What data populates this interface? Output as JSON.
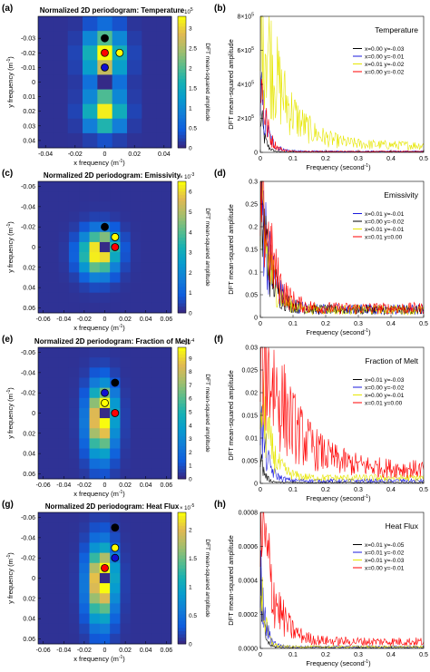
{
  "chart_data": [
    {
      "type": "heatmap",
      "panel_letter": "(a)",
      "title": "Normalized 2D periodogram: Temperature",
      "xlabel": "x frequency (m",
      "ylabel": "y frequency (m",
      "xlim": [
        -0.045,
        0.045
      ],
      "ylim": [
        -0.045,
        0.045
      ],
      "xticks": [
        "-0.04",
        "-0.02",
        "0",
        "0.02",
        "0.04"
      ],
      "yticks": [
        "-0.03",
        "-0.02",
        "-0.01",
        "0",
        "0.01",
        "0.02",
        "0.03",
        "0.04"
      ],
      "colorbar_ticks": [
        "0",
        "0.5",
        "1",
        "1.5",
        "2",
        "2.5",
        "3"
      ],
      "colorbar_exponent": "× 10",
      "colorbar_exponent_power": "5",
      "colorbar_max": 3.3,
      "colorbar_label": "DFT mean-squared amplitude",
      "markers": [
        {
          "x": 0.0,
          "y": -0.03,
          "color": "#000000"
        },
        {
          "x": 0.0,
          "y": -0.01,
          "color": "#1010d0"
        },
        {
          "x": 0.01,
          "y": -0.02,
          "color": "#ffff00"
        },
        {
          "x": 0.0,
          "y": -0.02,
          "color": "#ff0000"
        }
      ]
    },
    {
      "type": "line",
      "panel_letter": "(b)",
      "title": "Temperature",
      "xlabel": "Frequency (second",
      "ylabel": "DFT mean-squared amplitude",
      "xlim": [
        0,
        0.5
      ],
      "ylim": [
        0,
        800000
      ],
      "xticks": [
        "0",
        "0.1",
        "0.2",
        "0.3",
        "0.4",
        "0.5"
      ],
      "yticks": [
        "0",
        "2×10",
        "4×10",
        "6×10",
        "8×10"
      ],
      "ytick_exponent": "5",
      "series": [
        {
          "name": "x=0.00 y=-0.03",
          "color": "#000000",
          "peak": 250000,
          "decay": 0.012,
          "floor": 2000
        },
        {
          "name": "x=0.00 y=-0.01",
          "color": "#1a1adc",
          "peak": 360000,
          "decay": 0.02,
          "floor": 6000
        },
        {
          "name": "x=0.01 y=-0.02",
          "color": "#e6e600",
          "peak": 800000,
          "decay": 0.07,
          "floor": 40000
        },
        {
          "name": "x=0.00 y=-0.02",
          "color": "#ff0000",
          "peak": 480000,
          "decay": 0.018,
          "floor": 5000
        }
      ]
    },
    {
      "type": "heatmap",
      "panel_letter": "(c)",
      "title": "Normalized 2D periodogram: Emissivity",
      "xlabel": "x frequency (m",
      "ylabel": "y frequency (m",
      "xlim": [
        -0.065,
        0.065
      ],
      "ylim": [
        -0.065,
        0.065
      ],
      "xticks": [
        "-0.06",
        "-0.04",
        "-0.02",
        "0",
        "0.02",
        "0.04",
        "0.06"
      ],
      "yticks": [
        "-0.06",
        "-0.04",
        "-0.02",
        "0",
        "0.02",
        "0.04",
        "0.06"
      ],
      "colorbar_ticks": [
        "0",
        "1",
        "2",
        "3",
        "4",
        "5",
        "6"
      ],
      "colorbar_exponent": "× 10",
      "colorbar_exponent_power": "-3",
      "colorbar_max": 6.5,
      "colorbar_label": "DFT mean-squared amplitude",
      "markers": [
        {
          "x": 0.01,
          "y": -0.01,
          "color": "#1010d0"
        },
        {
          "x": 0.0,
          "y": -0.02,
          "color": "#000000"
        },
        {
          "x": 0.01,
          "y": -0.01,
          "color": "#ffff00"
        },
        {
          "x": 0.01,
          "y": 0.0,
          "color": "#ff0000"
        }
      ]
    },
    {
      "type": "line",
      "panel_letter": "(d)",
      "title": "Emissivity",
      "xlabel": "Frequency (second",
      "ylabel": "DFT mean-squared amplitude",
      "xlim": [
        0,
        0.5
      ],
      "ylim": [
        0,
        0.3
      ],
      "xticks": [
        "0",
        "0.1",
        "0.2",
        "0.3",
        "0.4",
        "0.5"
      ],
      "yticks": [
        "0",
        "0.05",
        "0.1",
        "0.15",
        "0.2",
        "0.25",
        "0.3"
      ],
      "series": [
        {
          "name": "x=0.01 y=-0.01",
          "color": "#1a1adc",
          "peak": 0.28,
          "decay": 0.03,
          "floor": 0.018
        },
        {
          "name": "x=0.00 y=-0.02",
          "color": "#000000",
          "peak": 0.26,
          "decay": 0.03,
          "floor": 0.017
        },
        {
          "name": "x=0.01 y=-0.01",
          "color": "#e6e600",
          "peak": 0.25,
          "decay": 0.03,
          "floor": 0.017
        },
        {
          "name": "x=0.01 y=0.00",
          "color": "#ff0000",
          "peak": 0.3,
          "decay": 0.035,
          "floor": 0.02
        }
      ]
    },
    {
      "type": "heatmap",
      "panel_letter": "(e)",
      "title": "Normalized 2D periodogram: Fraction  of Melt",
      "xlabel": "x frequency (m",
      "ylabel": "y frequency (m",
      "xlim": [
        -0.065,
        0.065
      ],
      "ylim": [
        -0.065,
        0.065
      ],
      "xticks": [
        "-0.06",
        "-0.04",
        "-0.02",
        "0",
        "0.02",
        "0.04",
        "0.06"
      ],
      "yticks": [
        "-0.06",
        "-0.04",
        "-0.02",
        "0",
        "0.02",
        "0.04",
        "0.06"
      ],
      "colorbar_ticks": [
        "0",
        "1",
        "2",
        "3",
        "4",
        "5",
        "6",
        "7",
        "8",
        "9"
      ],
      "colorbar_exponent": "× 10",
      "colorbar_exponent_power": "-4",
      "colorbar_max": 9.8,
      "colorbar_label": "DFT mean-squared amplitude",
      "markers": [
        {
          "x": 0.01,
          "y": -0.03,
          "color": "#000000"
        },
        {
          "x": 0.0,
          "y": -0.02,
          "color": "#1010d0"
        },
        {
          "x": 0.0,
          "y": -0.01,
          "color": "#ffff00"
        },
        {
          "x": 0.01,
          "y": 0.0,
          "color": "#ff0000"
        }
      ]
    },
    {
      "type": "line",
      "panel_letter": "(f)",
      "title": "Fraction of Melt",
      "xlabel": "Frequency (second",
      "ylabel": "DFT mean-squared amplitude",
      "xlim": [
        0,
        0.5
      ],
      "ylim": [
        0,
        0.03
      ],
      "xticks": [
        "0",
        "0.1",
        "0.2",
        "0.3",
        "0.4",
        "0.5"
      ],
      "yticks": [
        "0",
        "0.005",
        "0.01",
        "0.015",
        "0.02",
        "0.025",
        "0.03"
      ],
      "series": [
        {
          "name": "x=0.01 y=-0.03",
          "color": "#000000",
          "peak": 0.006,
          "decay": 0.012,
          "floor": 0.0002
        },
        {
          "name": "x=0.00 y=-0.02",
          "color": "#1a1adc",
          "peak": 0.014,
          "decay": 0.02,
          "floor": 0.0006
        },
        {
          "name": "x=0.00 y=-0.01",
          "color": "#e6e600",
          "peak": 0.02,
          "decay": 0.03,
          "floor": 0.0012
        },
        {
          "name": "x=0.01 y=0.00",
          "color": "#ff0000",
          "peak": 0.03,
          "decay": 0.09,
          "floor": 0.003
        }
      ]
    },
    {
      "type": "heatmap",
      "panel_letter": "(g)",
      "title": "Normalized 2D periodogram: Heat Flux",
      "xlabel": "x frequency (m",
      "ylabel": "y frequency (m",
      "xlim": [
        -0.065,
        0.065
      ],
      "ylim": [
        -0.065,
        0.065
      ],
      "xticks": [
        "-0.06",
        "-0.04",
        "-0.02",
        "0",
        "0.02",
        "0.04",
        "0.06"
      ],
      "yticks": [
        "-0.06",
        "-0.04",
        "-0.02",
        "0",
        "0.02",
        "0.04",
        "0.06"
      ],
      "colorbar_ticks": [
        "0",
        "0.5",
        "1",
        "1.5",
        "2"
      ],
      "colorbar_exponent": "× 10",
      "colorbar_exponent_power": "-5",
      "colorbar_max": 2.3,
      "colorbar_label": "DFT mean-squared amplitude",
      "markers": [
        {
          "x": 0.01,
          "y": -0.05,
          "color": "#000000"
        },
        {
          "x": 0.01,
          "y": -0.03,
          "color": "#ffff00"
        },
        {
          "x": 0.01,
          "y": -0.02,
          "color": "#1010d0"
        },
        {
          "x": 0.0,
          "y": -0.01,
          "color": "#ff0000"
        }
      ]
    },
    {
      "type": "line",
      "panel_letter": "(h)",
      "title": "Heat Flux",
      "xlabel": "Frequency (second",
      "ylabel": "DFT mean-squared amplitude",
      "xlim": [
        0,
        0.5
      ],
      "ylim": [
        0,
        0.0008
      ],
      "xticks": [
        "0",
        "0.1",
        "0.2",
        "0.3",
        "0.4",
        "0.5"
      ],
      "yticks": [
        "0.0000",
        "0.0002",
        "0.0004",
        "0.0006",
        "0.0008"
      ],
      "series": [
        {
          "name": "x=0.01 y=-0.05",
          "color": "#000000",
          "peak": 0.00035,
          "decay": 0.01,
          "floor": 5e-06
        },
        {
          "name": "x=0.01 y=-0.02",
          "color": "#1a1adc",
          "peak": 0.0004,
          "decay": 0.015,
          "floor": 1e-05
        },
        {
          "name": "x=0.01 y=-0.03",
          "color": "#e6e600",
          "peak": 0.0005,
          "decay": 0.012,
          "floor": 1e-05
        },
        {
          "name": "x=0.00 y=-0.01",
          "color": "#ff0000",
          "peak": 0.0008,
          "decay": 0.04,
          "floor": 4e-05
        }
      ]
    }
  ]
}
